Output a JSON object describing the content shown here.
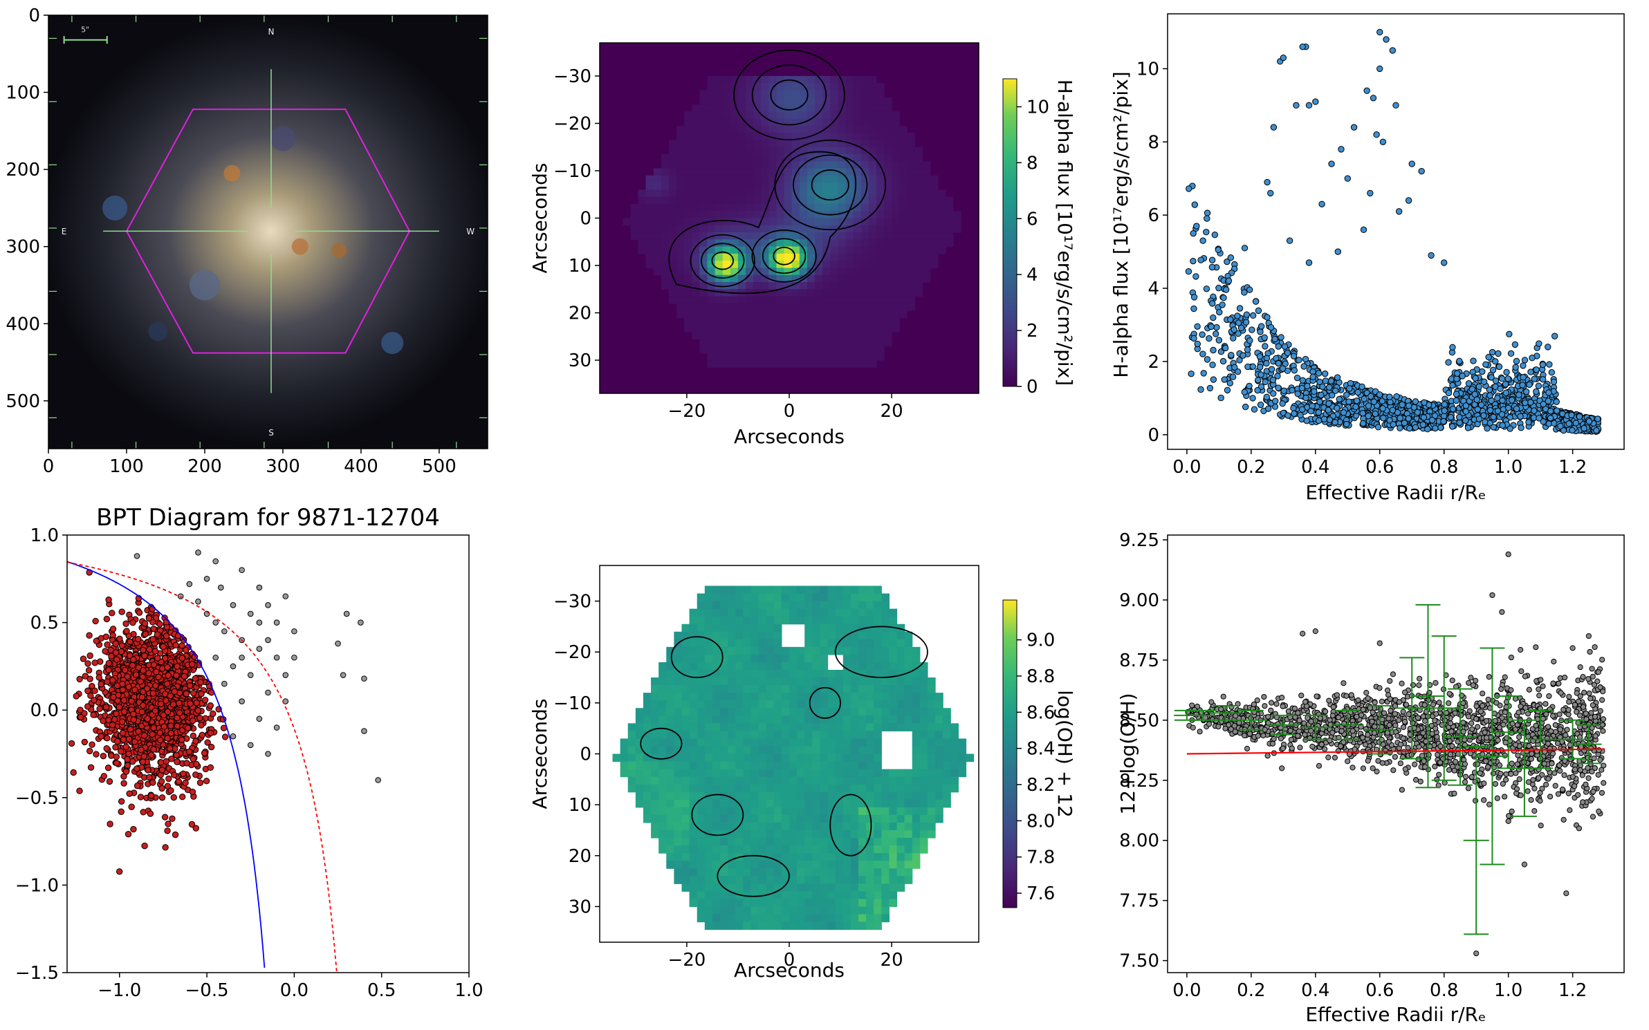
{
  "chart_data": [
    {
      "panel": "sdss-image",
      "type": "image",
      "xlim": [
        0,
        562
      ],
      "ylim": [
        562,
        0
      ],
      "xticks": [
        "0",
        "100",
        "200",
        "300",
        "400",
        "500"
      ],
      "yticks": [
        "0",
        "100",
        "200",
        "300",
        "400",
        "500"
      ],
      "compass": {
        "north": "N",
        "south": "S",
        "east": "E",
        "west": "W"
      },
      "scale_bar": "5\"",
      "ifu_hexagon": {
        "color": "#e020e0",
        "vertices": [
          [
            100,
            280
          ],
          [
            185,
            122
          ],
          [
            380,
            122
          ],
          [
            462,
            280
          ],
          [
            380,
            438
          ],
          [
            185,
            438
          ]
        ]
      },
      "crosshair_center": [
        285,
        280
      ],
      "colors": {
        "hexagon": "#e020e0",
        "crosshair": "#90e090",
        "background": "#0a0a10"
      }
    },
    {
      "panel": "halpha-map",
      "type": "heatmap",
      "xlabel": "Arcseconds",
      "ylabel": "Arcseconds",
      "xlim": [
        -37,
        37
      ],
      "ylim": [
        37,
        -37
      ],
      "xticks": [
        "−20",
        "0",
        "20"
      ],
      "yticks": [
        "−30",
        "−20",
        "−10",
        "0",
        "10",
        "20",
        "30"
      ],
      "colorbar": {
        "label": "H-alpha flux [10¹⁷erg/s/cm²/pix]",
        "range": [
          0,
          11
        ],
        "ticks": [
          "0",
          "2",
          "4",
          "6",
          "8",
          "10"
        ],
        "cmap": "viridis"
      },
      "peaks": [
        {
          "x": -13,
          "y": 9,
          "value": 10.5
        },
        {
          "x": -1,
          "y": 8,
          "value": 10.8
        },
        {
          "x": 8,
          "y": -7,
          "value": 3.5
        },
        {
          "x": 0,
          "y": -26,
          "value": 2.2
        }
      ]
    },
    {
      "panel": "halpha-vs-radius",
      "type": "scatter",
      "xlabel": "Effective Radii r/Rₑ",
      "ylabel": "H-alpha flux [10¹⁷erg/s/cm²/pix]",
      "xlim": [
        -0.06,
        1.36
      ],
      "ylim": [
        -0.4,
        11.5
      ],
      "xticks": [
        "0.0",
        "0.2",
        "0.4",
        "0.6",
        "0.8",
        "1.0",
        "1.2"
      ],
      "yticks": [
        "0",
        "2",
        "4",
        "6",
        "8",
        "10"
      ],
      "point_color": "#3f8fcf",
      "trend": [
        [
          0.0,
          5.0
        ],
        [
          0.1,
          3.8
        ],
        [
          0.2,
          2.7
        ],
        [
          0.3,
          1.8
        ],
        [
          0.4,
          1.3
        ],
        [
          0.5,
          1.0
        ],
        [
          0.6,
          0.8
        ],
        [
          0.7,
          0.65
        ],
        [
          0.8,
          0.55
        ],
        [
          0.9,
          0.5
        ],
        [
          1.0,
          0.6
        ],
        [
          1.1,
          0.55
        ],
        [
          1.2,
          0.4
        ],
        [
          1.28,
          0.3
        ]
      ],
      "outliers": [
        [
          0.37,
          10.6
        ],
        [
          0.36,
          10.6
        ],
        [
          0.6,
          11.0
        ],
        [
          0.62,
          10.8
        ],
        [
          0.64,
          10.5
        ],
        [
          0.6,
          10.0
        ],
        [
          0.29,
          10.2
        ],
        [
          0.3,
          10.3
        ],
        [
          0.38,
          9.0
        ],
        [
          0.4,
          9.1
        ],
        [
          0.34,
          9.0
        ],
        [
          0.56,
          9.4
        ],
        [
          0.58,
          9.2
        ],
        [
          0.65,
          9.0
        ],
        [
          0.59,
          8.2
        ],
        [
          0.61,
          8.0
        ],
        [
          0.52,
          8.4
        ],
        [
          0.27,
          8.4
        ],
        [
          0.48,
          7.8
        ],
        [
          0.45,
          7.4
        ],
        [
          0.7,
          7.4
        ],
        [
          0.73,
          7.2
        ],
        [
          0.25,
          6.9
        ],
        [
          0.26,
          6.6
        ],
        [
          0.5,
          7.0
        ],
        [
          0.57,
          6.6
        ],
        [
          0.42,
          6.3
        ],
        [
          0.66,
          6.1
        ],
        [
          0.69,
          6.4
        ],
        [
          0.03,
          5.7
        ],
        [
          0.02,
          5.5
        ],
        [
          0.05,
          5.3
        ],
        [
          0.18,
          5.1
        ],
        [
          0.32,
          5.3
        ],
        [
          0.55,
          5.6
        ],
        [
          0.47,
          5.0
        ],
        [
          0.38,
          4.7
        ],
        [
          0.76,
          4.9
        ],
        [
          0.8,
          4.7
        ]
      ]
    },
    {
      "panel": "bpt-diagram",
      "type": "scatter",
      "title": "BPT Diagram for 9871-12704",
      "xlim": [
        -1.3,
        1.0
      ],
      "ylim": [
        -1.5,
        1.0
      ],
      "xticks": [
        "−1.0",
        "−0.5",
        "0.0",
        "0.5",
        "1.0"
      ],
      "yticks": [
        "−1.5",
        "−1.0",
        "−0.5",
        "0.0",
        "0.5",
        "1.0"
      ],
      "starforming_center": [
        -0.8,
        0.08
      ],
      "composite_points": [
        [
          -0.5,
          0.75
        ],
        [
          -0.45,
          0.85
        ],
        [
          -0.55,
          0.9
        ],
        [
          -0.3,
          0.8
        ],
        [
          -0.35,
          0.6
        ],
        [
          -0.25,
          0.55
        ],
        [
          -0.2,
          0.7
        ],
        [
          -0.15,
          0.6
        ],
        [
          -0.1,
          0.5
        ],
        [
          -0.05,
          0.65
        ],
        [
          -0.4,
          0.45
        ],
        [
          -0.3,
          0.4
        ],
        [
          -0.2,
          0.35
        ],
        [
          -0.1,
          0.3
        ],
        [
          -0.35,
          0.25
        ],
        [
          -0.25,
          0.2
        ],
        [
          -0.15,
          0.1
        ],
        [
          -0.3,
          0.05
        ],
        [
          -0.2,
          -0.05
        ],
        [
          -0.1,
          -0.1
        ],
        [
          -0.35,
          -0.15
        ],
        [
          -0.25,
          -0.2
        ],
        [
          -0.15,
          -0.25
        ],
        [
          -0.4,
          0.15
        ],
        [
          -0.45,
          0.3
        ],
        [
          -0.5,
          0.55
        ],
        [
          -0.6,
          0.72
        ],
        [
          -0.05,
          0.2
        ],
        [
          0.0,
          0.45
        ],
        [
          0.3,
          0.55
        ],
        [
          0.38,
          0.5
        ],
        [
          0.25,
          0.38
        ],
        [
          0.28,
          0.2
        ],
        [
          0.4,
          0.18
        ],
        [
          0.4,
          -0.12
        ],
        [
          0.48,
          -0.4
        ],
        [
          -0.65,
          0.65
        ],
        [
          -0.55,
          0.62
        ],
        [
          -0.42,
          0.7
        ],
        [
          -0.2,
          0.5
        ],
        [
          0.0,
          0.3
        ],
        [
          -0.05,
          0.05
        ],
        [
          -0.15,
          0.4
        ],
        [
          -0.3,
          0.3
        ],
        [
          -0.45,
          0.5
        ],
        [
          -0.9,
          0.88
        ]
      ],
      "demarcation_lines": [
        {
          "name": "Kauffmann",
          "color": "#0000ff",
          "style": "solid"
        },
        {
          "name": "Kewley",
          "color": "#ff0000",
          "style": "dashed"
        }
      ],
      "colors": {
        "starforming": "#c81e1e",
        "composite": "#999999"
      }
    },
    {
      "panel": "metallicity-map",
      "type": "heatmap",
      "xlabel": "Arcseconds",
      "ylabel": "Arcseconds",
      "xlim": [
        -37,
        37
      ],
      "ylim": [
        37,
        -37
      ],
      "xticks": [
        "−20",
        "0",
        "20"
      ],
      "yticks": [
        "−30",
        "−20",
        "−10",
        "0",
        "10",
        "20",
        "30"
      ],
      "colorbar": {
        "label": "log(OH) + 12",
        "range": [
          7.52,
          9.22
        ],
        "ticks": [
          "7.6",
          "7.8",
          "8.0",
          "8.2",
          "8.4",
          "8.6",
          "8.8",
          "9.0"
        ],
        "cmap": "viridis"
      },
      "mean_value": 8.45,
      "contour_level": "8.600"
    },
    {
      "panel": "metallicity-vs-radius",
      "type": "scatter",
      "xlabel": "Effective Radii r/Rₑ",
      "ylabel": "12+log(O/H)",
      "xlim": [
        -0.06,
        1.36
      ],
      "ylim": [
        7.45,
        9.27
      ],
      "xticks": [
        "0.0",
        "0.2",
        "0.4",
        "0.6",
        "0.8",
        "1.0",
        "1.2"
      ],
      "yticks": [
        "7.50",
        "7.75",
        "8.00",
        "8.25",
        "8.50",
        "8.75",
        "9.00",
        "9.25"
      ],
      "mean_trend": [
        [
          0.0,
          8.52
        ],
        [
          0.3,
          8.48
        ],
        [
          0.6,
          8.46
        ],
        [
          0.9,
          8.43
        ],
        [
          1.2,
          8.42
        ],
        [
          1.3,
          8.42
        ]
      ],
      "fit_line": {
        "x": [
          0.0,
          1.3
        ],
        "y": [
          8.36,
          8.38
        ],
        "color": "#ff0000"
      },
      "error_bars": [
        {
          "x": 0.0,
          "y": 8.52,
          "xerr": 0.04,
          "yerr": 0.02
        },
        {
          "x": 0.05,
          "y": 8.52,
          "xerr": 0.04,
          "yerr": 0.02
        },
        {
          "x": 0.12,
          "y": 8.53,
          "xerr": 0.05,
          "yerr": 0.03
        },
        {
          "x": 0.2,
          "y": 8.5,
          "xerr": 0.05,
          "yerr": 0.04
        },
        {
          "x": 0.3,
          "y": 8.48,
          "xerr": 0.05,
          "yerr": 0.04
        },
        {
          "x": 0.4,
          "y": 8.47,
          "xerr": 0.05,
          "yerr": 0.05
        },
        {
          "x": 0.5,
          "y": 8.48,
          "xerr": 0.05,
          "yerr": 0.06
        },
        {
          "x": 0.6,
          "y": 8.46,
          "xerr": 0.05,
          "yerr": 0.1
        },
        {
          "x": 0.7,
          "y": 8.55,
          "xerr": 0.05,
          "yerr": 0.21
        },
        {
          "x": 0.75,
          "y": 8.6,
          "xerr": 0.05,
          "yerr": 0.38
        },
        {
          "x": 0.8,
          "y": 8.55,
          "xerr": 0.05,
          "yerr": 0.3
        },
        {
          "x": 0.85,
          "y": 8.43,
          "xerr": 0.05,
          "yerr": 0.2
        },
        {
          "x": 0.9,
          "y": 8.0,
          "xerr": 0.04,
          "yerr": 0.39
        },
        {
          "x": 0.95,
          "y": 8.35,
          "xerr": 0.05,
          "yerr": 0.45
        },
        {
          "x": 1.0,
          "y": 8.45,
          "xerr": 0.05,
          "yerr": 0.15
        },
        {
          "x": 1.05,
          "y": 8.3,
          "xerr": 0.05,
          "yerr": 0.2
        },
        {
          "x": 1.1,
          "y": 8.42,
          "xerr": 0.05,
          "yerr": 0.12
        },
        {
          "x": 1.2,
          "y": 8.42,
          "xerr": 0.05,
          "yerr": 0.08
        },
        {
          "x": 1.25,
          "y": 8.4,
          "xerr": 0.04,
          "yerr": 0.08
        }
      ],
      "outliers": [
        [
          1.0,
          9.19
        ],
        [
          0.95,
          9.02
        ],
        [
          0.98,
          8.95
        ],
        [
          0.4,
          8.87
        ],
        [
          0.36,
          8.86
        ],
        [
          0.6,
          8.82
        ],
        [
          1.25,
          8.85
        ],
        [
          1.2,
          8.8
        ],
        [
          1.28,
          8.7
        ],
        [
          0.9,
          7.53
        ],
        [
          1.18,
          7.78
        ],
        [
          1.22,
          8.05
        ],
        [
          1.0,
          8.08
        ],
        [
          1.05,
          7.9
        ]
      ],
      "colors": {
        "points": "#888888",
        "error_bars": "#1a8a1a"
      }
    }
  ]
}
